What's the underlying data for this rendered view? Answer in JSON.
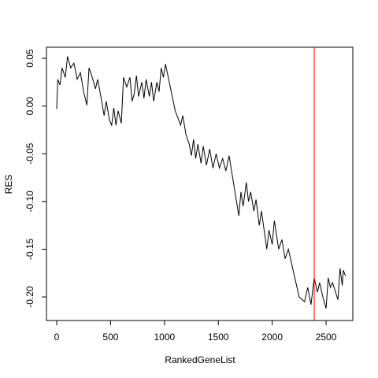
{
  "chart_data": {
    "type": "line",
    "xlabel": "RankedGeneList",
    "ylabel": "RES",
    "xlim": [
      -95,
      2748
    ],
    "ylim": [
      -0.2247,
      0.0616
    ],
    "xticks": [
      0,
      500,
      1000,
      1500,
      2000,
      2500
    ],
    "yticks": [
      {
        "value": -0.2,
        "label": "-0.20"
      },
      -0.15,
      {
        "value": -0.1,
        "label": "-0.10"
      },
      -0.05,
      {
        "value": 0,
        "label": "0.00"
      },
      0.05
    ],
    "grid": false,
    "vline": {
      "x": 2390,
      "color": "#ff0000"
    },
    "series": [
      {
        "color": "#000000",
        "x": [
          0,
          10,
          30,
          50,
          80,
          100,
          130,
          160,
          190,
          220,
          250,
          280,
          300,
          330,
          360,
          380,
          410,
          440,
          460,
          490,
          510,
          530,
          550,
          570,
          600,
          620,
          650,
          680,
          700,
          720,
          740,
          760,
          790,
          810,
          830,
          860,
          880,
          900,
          930,
          950,
          970,
          990,
          1010,
          1100,
          1150,
          1170,
          1200,
          1230,
          1250,
          1270,
          1290,
          1310,
          1340,
          1360,
          1390,
          1420,
          1450,
          1480,
          1510,
          1540,
          1570,
          1600,
          1690,
          1710,
          1730,
          1760,
          1780,
          1800,
          1830,
          1850,
          1880,
          1900,
          1950,
          1970,
          2000,
          2020,
          2060,
          2090,
          2120,
          2150,
          2250,
          2300,
          2330,
          2360,
          2390,
          2420,
          2440,
          2470,
          2500,
          2520,
          2540,
          2560,
          2610,
          2630,
          2650,
          2660,
          2680
        ],
        "values": [
          -0.003,
          0.028,
          0.022,
          0.04,
          0.03,
          0.052,
          0.04,
          0.045,
          0.028,
          0.035,
          0.015,
          0.001,
          0.04,
          0.03,
          0.018,
          0.028,
          0.01,
          -0.01,
          0.005,
          -0.015,
          -0.02,
          -0.002,
          -0.02,
          -0.005,
          -0.018,
          0.03,
          0.02,
          0.03,
          0.005,
          0.013,
          0.032,
          0.01,
          0.025,
          0.008,
          0.028,
          0.01,
          0.025,
          0.005,
          0.025,
          0.015,
          0.04,
          0.03,
          0.044,
          -0.005,
          -0.02,
          -0.01,
          -0.03,
          -0.04,
          -0.052,
          -0.035,
          -0.055,
          -0.04,
          -0.06,
          -0.042,
          -0.062,
          -0.045,
          -0.065,
          -0.05,
          -0.065,
          -0.055,
          -0.068,
          -0.052,
          -0.115,
          -0.09,
          -0.105,
          -0.08,
          -0.1,
          -0.09,
          -0.11,
          -0.098,
          -0.125,
          -0.11,
          -0.15,
          -0.13,
          -0.145,
          -0.12,
          -0.15,
          -0.14,
          -0.16,
          -0.15,
          -0.2,
          -0.205,
          -0.19,
          -0.208,
          -0.18,
          -0.195,
          -0.185,
          -0.2,
          -0.212,
          -0.18,
          -0.19,
          -0.185,
          -0.203,
          -0.17,
          -0.188,
          -0.172,
          -0.178
        ]
      }
    ]
  }
}
